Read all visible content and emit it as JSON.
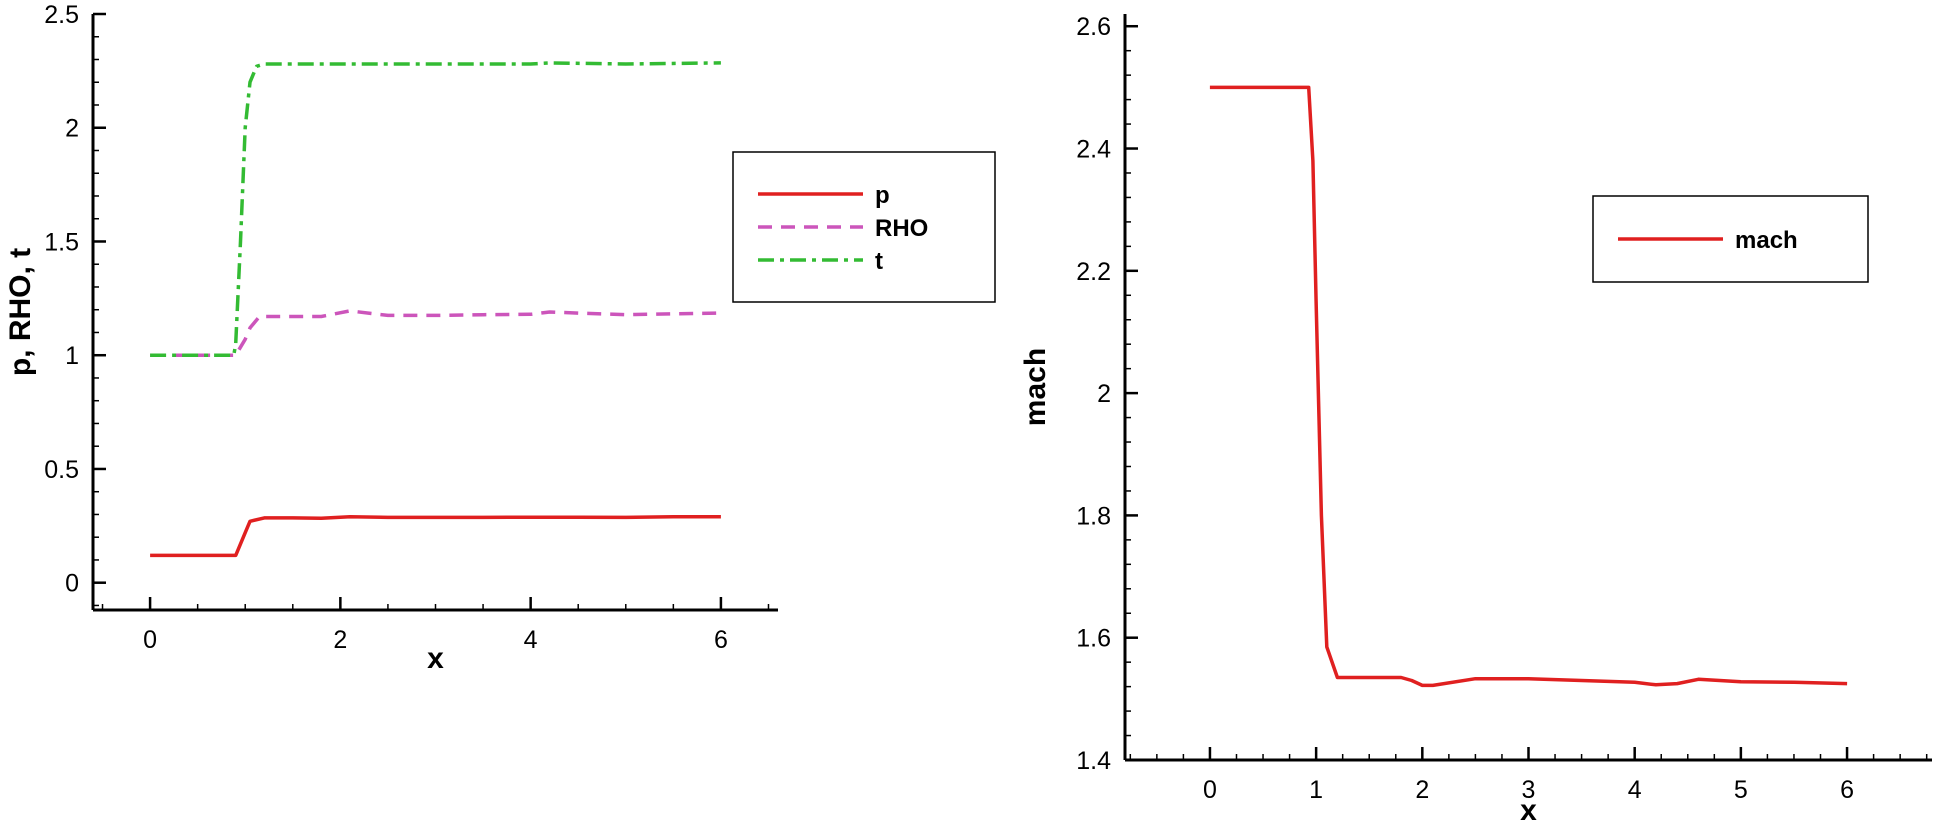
{
  "chart_data": [
    {
      "type": "line",
      "title": "",
      "xlabel": "x",
      "ylabel": "p, RHO, t",
      "xlim": [
        -0.6,
        6.6
      ],
      "ylim": [
        -0.12,
        2.5
      ],
      "xticks": [
        "0",
        "2",
        "4",
        "6"
      ],
      "yticks": [
        "0",
        "0.5",
        "1",
        "1.5",
        "2",
        "2.5"
      ],
      "grid": false,
      "legend_position": "right",
      "series": [
        {
          "name": "p",
          "color": "#e02020",
          "dash": "solid",
          "x": [
            0,
            0.5,
            0.9,
            1.0,
            1.05,
            1.2,
            1.5,
            1.8,
            2.1,
            2.5,
            3.0,
            3.5,
            4.0,
            4.5,
            5.0,
            5.5,
            6.0
          ],
          "y": [
            0.12,
            0.12,
            0.12,
            0.22,
            0.27,
            0.285,
            0.285,
            0.283,
            0.29,
            0.287,
            0.287,
            0.287,
            0.288,
            0.288,
            0.287,
            0.29,
            0.29
          ]
        },
        {
          "name": "RHO",
          "color": "#cc55bb",
          "dash": "dash",
          "x": [
            0,
            0.5,
            0.9,
            1.0,
            1.05,
            1.15,
            1.5,
            1.8,
            2.1,
            2.5,
            3.0,
            3.5,
            4.0,
            4.2,
            4.5,
            5.0,
            5.5,
            6.0
          ],
          "y": [
            1.0,
            1.0,
            1.0,
            1.07,
            1.12,
            1.17,
            1.17,
            1.17,
            1.195,
            1.175,
            1.175,
            1.178,
            1.18,
            1.19,
            1.185,
            1.178,
            1.182,
            1.185
          ]
        },
        {
          "name": "t",
          "color": "#33bb33",
          "dash": "dashdot",
          "x": [
            0,
            0.5,
            0.88,
            0.9,
            0.95,
            1.0,
            1.05,
            1.12,
            1.2,
            1.5,
            2.0,
            3.0,
            4.0,
            4.2,
            5.0,
            6.0
          ],
          "y": [
            1.0,
            1.0,
            1.0,
            1.05,
            1.5,
            2.0,
            2.2,
            2.27,
            2.28,
            2.28,
            2.28,
            2.28,
            2.28,
            2.285,
            2.28,
            2.285
          ]
        }
      ]
    },
    {
      "type": "line",
      "title": "",
      "xlabel": "x",
      "ylabel": "mach",
      "xlim": [
        -0.8,
        6.8
      ],
      "ylim": [
        1.4,
        2.62
      ],
      "xticks": [
        "0",
        "1",
        "2",
        "3",
        "4",
        "5",
        "6"
      ],
      "yticks": [
        "1.4",
        "1.6",
        "1.8",
        "2",
        "2.2",
        "2.4",
        "2.6"
      ],
      "grid": false,
      "legend_position": "top-right",
      "series": [
        {
          "name": "mach",
          "color": "#e02020",
          "dash": "solid",
          "x": [
            0,
            0.5,
            0.93,
            0.97,
            1.0,
            1.05,
            1.1,
            1.2,
            1.5,
            1.8,
            1.9,
            2.0,
            2.1,
            2.5,
            3.0,
            3.5,
            4.0,
            4.2,
            4.4,
            4.6,
            5.0,
            5.5,
            6.0
          ],
          "y": [
            2.5,
            2.5,
            2.5,
            2.38,
            2.15,
            1.8,
            1.585,
            1.535,
            1.535,
            1.535,
            1.53,
            1.522,
            1.522,
            1.533,
            1.533,
            1.53,
            1.527,
            1.523,
            1.525,
            1.532,
            1.528,
            1.527,
            1.525
          ]
        }
      ]
    }
  ]
}
